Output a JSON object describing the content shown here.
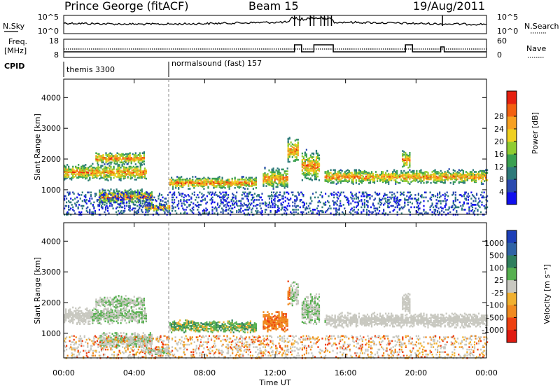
{
  "header": {
    "station": "Prince George (fitACF)",
    "beam": "Beam 15",
    "date": "19/Aug/2011"
  },
  "noise_panel": {
    "left_label": "N.Sky",
    "right_label": "N.Search",
    "left_ticks": [
      "10^5",
      "10^0"
    ],
    "right_ticks": [
      "10^5",
      "10^0"
    ]
  },
  "freq_panel": {
    "left_label_line1": "Freq.",
    "left_label_line2": "[MHz]",
    "right_label": "Nave",
    "left_ticks": [
      "18",
      "8"
    ],
    "right_ticks": [
      "60",
      "0"
    ]
  },
  "cpid": {
    "label": "CPID",
    "segments": [
      {
        "name": "themis 3300",
        "start_hour": 0,
        "end_hour": 6
      },
      {
        "name": "normalsound (fast) 157",
        "start_hour": 6,
        "end_hour": 24
      }
    ]
  },
  "time_axis": {
    "label": "Time UT",
    "ticks": [
      "00:00",
      "04:00",
      "08:00",
      "12:00",
      "16:00",
      "20:00",
      "00:00"
    ]
  },
  "chart_data": [
    {
      "type": "heatmap",
      "name": "power-panel",
      "ylabel": "Slant Range [km]",
      "xlabel": "",
      "xlim_hours": [
        0,
        24
      ],
      "ylim_km": [
        200,
        4600
      ],
      "yticks": [
        "1000",
        "2000",
        "3000",
        "4000"
      ],
      "colorbar": {
        "label": "Power [dB]",
        "ticks": [
          "4",
          "8",
          "12",
          "16",
          "20",
          "24",
          "28"
        ],
        "colors": [
          "#1010ee",
          "#2a4ab0",
          "#2e7a7a",
          "#3aa050",
          "#8fcc30",
          "#f0d020",
          "#f7a020",
          "#f36010",
          "#e62010"
        ]
      }
    },
    {
      "type": "heatmap",
      "name": "velocity-panel",
      "ylabel": "Slant Range [km]",
      "xlabel": "Time UT",
      "xlim_hours": [
        0,
        24
      ],
      "ylim_km": [
        200,
        4600
      ],
      "yticks": [
        "1000",
        "2000",
        "3000",
        "4000"
      ],
      "colorbar": {
        "label": "Velocity [m s⁻¹]",
        "ticks": [
          "1000",
          "500",
          "100",
          "25",
          "-25",
          "-100",
          "-500",
          "-1000"
        ],
        "colors": [
          "#1d3fb8",
          "#2f63a6",
          "#2f7f5e",
          "#57b050",
          "#c8c8c0",
          "#f0b030",
          "#f08a20",
          "#ee4010",
          "#e01a10"
        ]
      }
    }
  ]
}
